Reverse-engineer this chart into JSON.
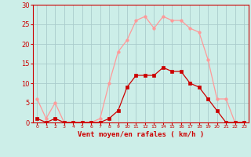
{
  "hours": [
    0,
    1,
    2,
    3,
    4,
    5,
    6,
    7,
    8,
    9,
    10,
    11,
    12,
    13,
    14,
    15,
    16,
    17,
    18,
    19,
    20,
    21,
    22,
    23
  ],
  "wind_avg": [
    1,
    0,
    1,
    0,
    0,
    0,
    0,
    0,
    1,
    3,
    9,
    12,
    12,
    12,
    14,
    13,
    13,
    10,
    9,
    6,
    3,
    0,
    0,
    0
  ],
  "wind_gust": [
    6,
    1,
    5,
    0,
    0,
    0,
    0,
    1,
    10,
    18,
    21,
    26,
    27,
    24,
    27,
    26,
    26,
    24,
    23,
    16,
    6,
    6,
    0,
    0
  ],
  "line_avg_color": "#cc0000",
  "line_gust_color": "#ff9999",
  "bg_color": "#cceee8",
  "grid_color": "#aacccc",
  "axis_color": "#cc0000",
  "xlabel": "Vent moyen/en rafales ( km/h )",
  "ylim": [
    0,
    30
  ],
  "yticks": [
    0,
    5,
    10,
    15,
    20,
    25,
    30
  ],
  "xlim": [
    -0.5,
    23.5
  ]
}
